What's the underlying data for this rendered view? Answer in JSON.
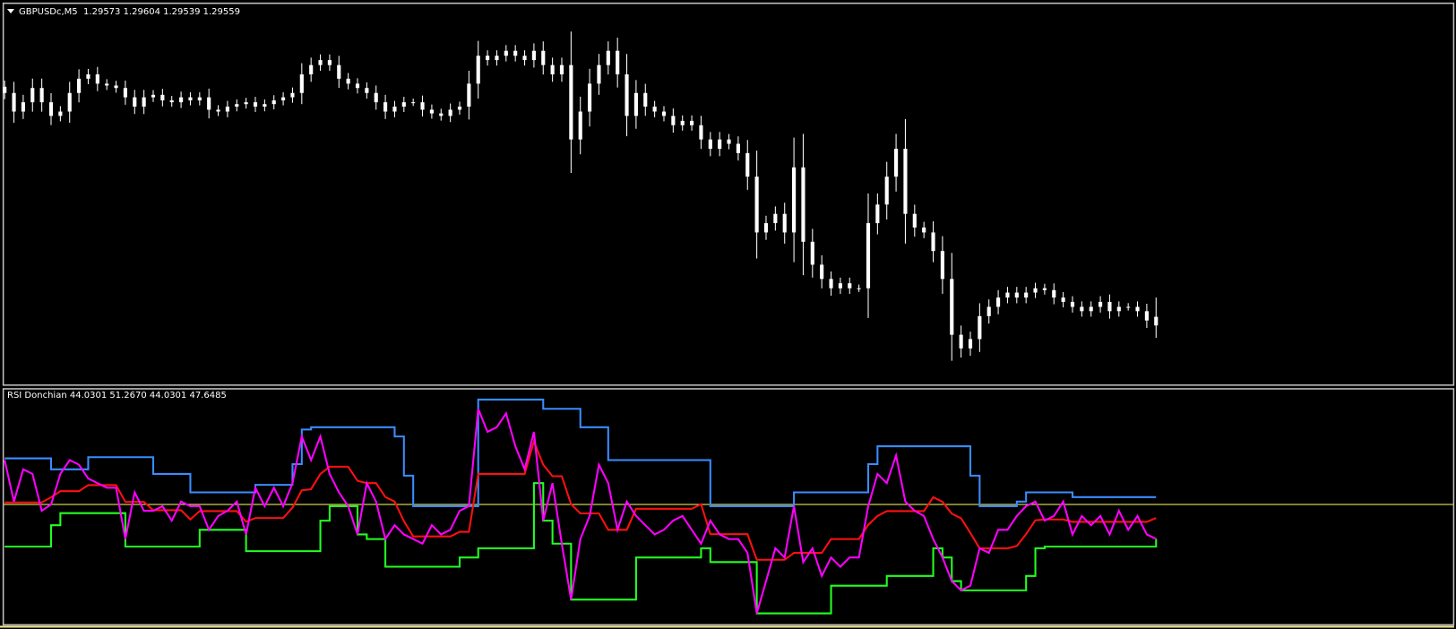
{
  "main_header": {
    "symbol": "GBPUSDc,M5",
    "ohlc": "1.29573 1.29604 1.29539 1.29559",
    "menu_icon": "triangle-down-icon"
  },
  "indicator_header": {
    "name": "RSI Donchian",
    "values": "44.0301 51.2670 44.0301 47.6485"
  },
  "colors": {
    "background": "#000000",
    "frame": "#c0c0c0",
    "candles": "#ffffff",
    "rsi": "#ff00ff",
    "upper": "#3a8cff",
    "lower": "#22ff22",
    "middle": "#ff1010",
    "level": "#ffff66"
  },
  "chart_data": [
    {
      "type": "candlestick",
      "title": "GBPUSDc,M5",
      "last_candle": {
        "open": 1.29573,
        "high": 1.29604,
        "low": 1.29539,
        "close": 1.29559
      },
      "ylim": [
        1.29477,
        1.30039
      ],
      "grid": false,
      "closes": [
        1.29934,
        1.29904,
        1.29919,
        1.29942,
        1.29919,
        1.29897,
        1.29904,
        1.29934,
        1.29957,
        1.29964,
        1.29949,
        1.29946,
        1.29942,
        1.29927,
        1.29912,
        1.29927,
        1.29931,
        1.29922,
        1.29919,
        1.29927,
        1.29922,
        1.29927,
        1.29907,
        1.29904,
        1.29912,
        1.29916,
        1.29919,
        1.29912,
        1.29916,
        1.29922,
        1.29927,
        1.29934,
        1.29964,
        1.29979,
        1.29987,
        1.29979,
        1.29957,
        1.29949,
        1.29942,
        1.29934,
        1.29919,
        1.29904,
        1.29912,
        1.29919,
        1.29919,
        1.29907,
        1.29901,
        1.29897,
        1.29907,
        1.29912,
        1.29949,
        1.29994,
        1.29987,
        1.29994,
        1.30002,
        1.29994,
        1.29987,
        1.30002,
        1.29979,
        1.29964,
        1.29979,
        1.29859,
        1.29904,
        1.29949,
        1.29979,
        1.30002,
        1.29964,
        1.29897,
        1.29934,
        1.29912,
        1.29904,
        1.29897,
        1.29882,
        1.29889,
        1.29882,
        1.29859,
        1.29844,
        1.29859,
        1.29852,
        1.29837,
        1.29799,
        1.29709,
        1.29724,
        1.29739,
        1.29709,
        1.29814,
        1.29694,
        1.29657,
        1.29634,
        1.29619,
        1.29627,
        1.29619,
        1.29619,
        1.29724,
        1.29754,
        1.29799,
        1.29844,
        1.29739,
        1.29717,
        1.29709,
        1.29679,
        1.29634,
        1.29544,
        1.29522,
        1.29537,
        1.29574,
        1.29589,
        1.29604,
        1.29612,
        1.29604,
        1.29612,
        1.29619,
        1.29616,
        1.29604,
        1.29597,
        1.29589,
        1.29582,
        1.29589,
        1.29597,
        1.29582,
        1.29589,
        1.29589,
        1.29582,
        1.29567,
        1.29559
      ]
    },
    {
      "type": "line",
      "title": "RSI Donchian",
      "ylim": [
        29.2,
        69.5
      ],
      "levels": [
        50
      ],
      "grid": false,
      "series": [
        {
          "key": "rsi",
          "values": [
            57.7,
            50.5,
            56.1,
            55.3,
            48.9,
            50,
            55.3,
            57.7,
            56.9,
            54.5,
            53.7,
            52.9,
            52.9,
            44.0,
            52.1,
            48.9,
            48.9,
            49.7,
            47.2,
            50.5,
            49.7,
            49.7,
            45.6,
            48.0,
            48.9,
            50.5,
            44.8,
            52.9,
            49.7,
            52.9,
            49.7,
            53.7,
            61.8,
            57.7,
            61.8,
            55.3,
            52.1,
            49.7,
            44.8,
            53.7,
            50.5,
            44.0,
            46.4,
            44.8,
            44.0,
            43.2,
            46.4,
            44.8,
            45.6,
            48.9,
            49.7,
            66.6,
            62.6,
            63.4,
            65.8,
            60.1,
            56.1,
            62.6,
            47.2,
            53.7,
            43.2,
            33.5,
            44.0,
            48.0,
            56.9,
            53.7,
            45.6,
            50.5,
            48.0,
            46.4,
            44.8,
            45.6,
            47.2,
            48.0,
            45.6,
            43.2,
            47.2,
            44.8,
            44.0,
            44.0,
            41.6,
            31.1,
            36.7,
            42.4,
            40.8,
            49.7,
            40.0,
            42.4,
            37.6,
            40.8,
            39.2,
            40.8,
            40.8,
            49.7,
            55.3,
            53.7,
            58.5,
            50.5,
            48.9,
            48.0,
            44.0,
            40.8,
            36.7,
            35.1,
            35.9,
            42.4,
            41.6,
            45.6,
            45.6,
            48.0,
            49.7,
            50.5,
            47.2,
            48.0,
            50.5,
            44.8,
            48.0,
            46.4,
            48.0,
            44.8,
            48.9,
            45.6,
            48.0,
            44.8,
            44.03
          ]
        },
        {
          "key": "upper",
          "values": [
            58.0,
            58.0,
            58.0,
            58.0,
            58.0,
            56.1,
            56.1,
            56.1,
            56.1,
            58.2,
            58.2,
            58.2,
            58.2,
            58.2,
            58.2,
            58.2,
            55.3,
            55.3,
            55.3,
            55.3,
            52.1,
            52.1,
            52.1,
            52.1,
            52.1,
            52.1,
            52.1,
            53.4,
            53.4,
            53.4,
            53.4,
            57.0,
            63.0,
            63.4,
            63.4,
            63.4,
            63.4,
            63.4,
            63.4,
            63.4,
            63.4,
            63.4,
            61.8,
            55.0,
            49.7,
            49.7,
            49.7,
            49.7,
            49.7,
            49.7,
            49.7,
            68.2,
            68.2,
            68.2,
            68.2,
            68.2,
            68.2,
            68.2,
            66.6,
            66.6,
            66.6,
            66.6,
            63.4,
            63.4,
            63.4,
            57.7,
            57.7,
            57.7,
            57.7,
            57.7,
            57.7,
            57.7,
            57.7,
            57.7,
            57.7,
            57.7,
            49.7,
            49.7,
            49.7,
            49.7,
            49.7,
            49.7,
            49.7,
            49.7,
            49.7,
            52.1,
            52.1,
            52.1,
            52.1,
            52.1,
            52.1,
            52.1,
            52.1,
            57.0,
            60.1,
            60.1,
            60.1,
            60.1,
            60.1,
            60.1,
            60.1,
            60.1,
            60.1,
            60.1,
            55.0,
            49.7,
            49.7,
            49.7,
            49.7,
            50.5,
            52.1,
            52.1,
            52.1,
            52.1,
            52.1,
            51.27,
            51.27,
            51.27,
            51.27,
            51.27,
            51.27,
            51.27,
            51.27,
            51.27,
            51.27
          ]
        },
        {
          "key": "lower",
          "values": [
            42.7,
            42.7,
            42.7,
            42.7,
            42.7,
            46.4,
            48.5,
            48.5,
            48.5,
            48.5,
            48.5,
            48.5,
            48.5,
            42.7,
            42.7,
            42.7,
            42.7,
            42.7,
            42.7,
            42.7,
            42.7,
            45.6,
            45.6,
            45.6,
            45.6,
            45.6,
            41.9,
            41.9,
            41.9,
            41.9,
            41.9,
            41.9,
            41.9,
            41.9,
            47.2,
            49.7,
            49.7,
            49.7,
            44.8,
            44.0,
            44.0,
            39.2,
            39.2,
            39.2,
            39.2,
            39.2,
            39.2,
            39.2,
            39.2,
            40.8,
            40.8,
            42.4,
            42.4,
            42.4,
            42.4,
            42.4,
            42.4,
            53.7,
            47.2,
            43.2,
            43.2,
            33.5,
            33.5,
            33.5,
            33.5,
            33.5,
            33.5,
            33.5,
            40.8,
            40.8,
            40.8,
            40.8,
            40.8,
            40.8,
            40.8,
            42.4,
            40.0,
            40.0,
            40.0,
            40.0,
            40.0,
            31.1,
            31.1,
            31.1,
            31.1,
            31.1,
            31.1,
            31.1,
            31.1,
            35.9,
            35.9,
            35.9,
            35.9,
            35.9,
            35.9,
            37.6,
            37.6,
            37.6,
            37.6,
            37.6,
            42.4,
            40.8,
            36.7,
            35.1,
            35.1,
            35.1,
            35.1,
            35.1,
            35.1,
            35.1,
            37.6,
            42.4,
            42.7,
            42.7,
            42.7,
            42.7,
            42.7,
            42.7,
            42.7,
            42.7,
            42.7,
            42.7,
            42.7,
            42.7,
            44.03
          ]
        }
      ]
    }
  ]
}
